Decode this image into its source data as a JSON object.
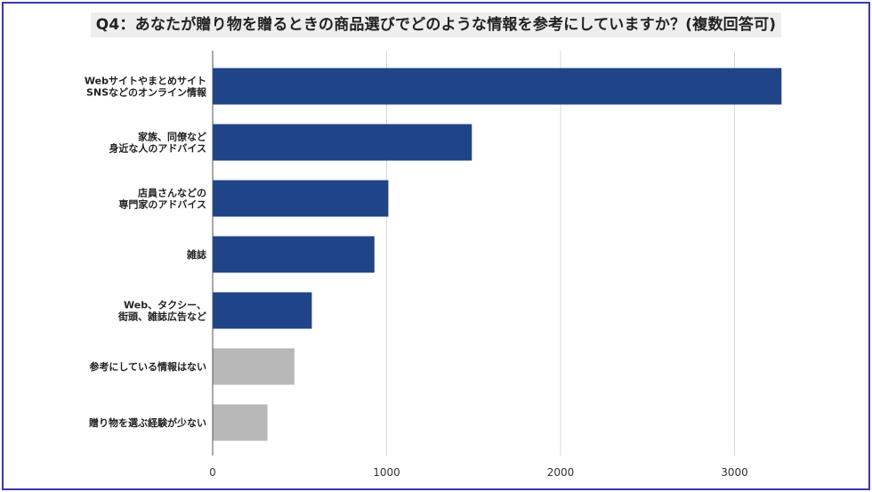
{
  "chart_data": {
    "type": "bar",
    "orientation": "horizontal",
    "title": "Q4：あなたが贈り物を贈るときの商品選びでどのような情報を参考にしていますか？(複数回答可)",
    "categories": [
      [
        "Webサイトやまとめサイト",
        "SNSなどのオンライン情報"
      ],
      [
        "家族、同僚など",
        "身近な人のアドバイス"
      ],
      [
        "店員さんなどの",
        "専門家のアドバイス"
      ],
      [
        "雑誌"
      ],
      [
        "Web、タクシー、",
        "街頭、雑誌広告など"
      ],
      [
        "参考にしている情報はない"
      ],
      [
        "贈り物を選ぶ経験が少ない"
      ]
    ],
    "values": [
      3270,
      1490,
      1010,
      930,
      570,
      470,
      315
    ],
    "bar_colors": [
      "#1f4488",
      "#1f4488",
      "#1f4488",
      "#1f4488",
      "#1f4488",
      "#b8b8b8",
      "#b8b8b8"
    ],
    "xlim": [
      0,
      3500
    ],
    "xticks": [
      0,
      1000,
      2000,
      3000
    ],
    "grid": true,
    "xlabel": "",
    "ylabel": ""
  }
}
